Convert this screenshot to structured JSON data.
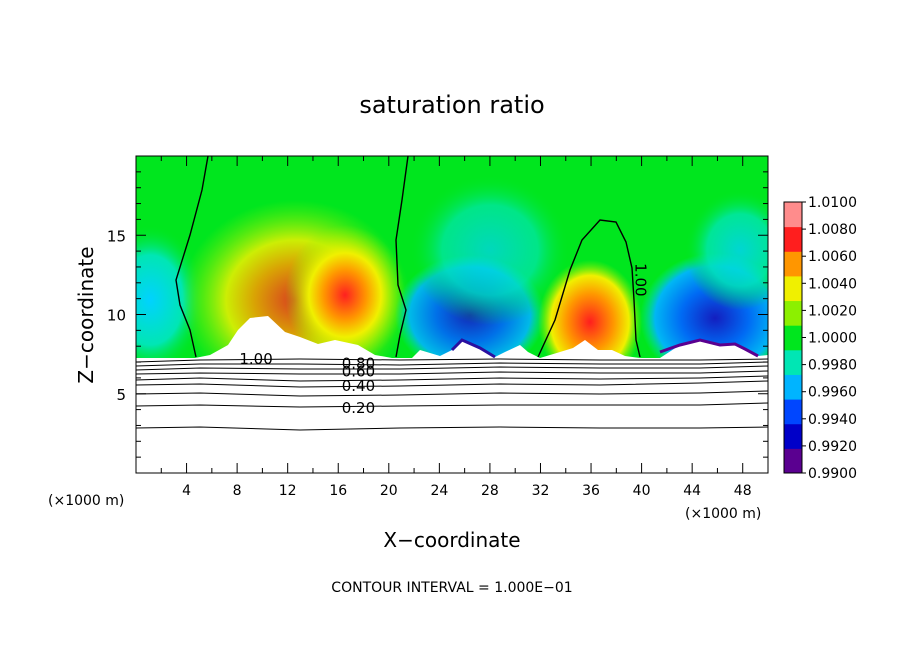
{
  "chart_data": {
    "type": "heatmap",
    "title": "saturation ratio",
    "xlabel": "X−coordinate",
    "ylabel": "Z−coordinate",
    "x_unit_left": "(×1000 m)",
    "x_unit_right": "(×1000 m)",
    "xlim": [
      0,
      50
    ],
    "ylim": [
      0,
      20
    ],
    "x_ticks": [
      4,
      8,
      12,
      16,
      20,
      24,
      28,
      32,
      36,
      40,
      44,
      48
    ],
    "y_ticks": [
      5,
      10,
      15
    ],
    "colorbar": {
      "levels": [
        0.99,
        0.992,
        0.994,
        0.996,
        0.998,
        1.0,
        1.002,
        1.004,
        1.006,
        1.008,
        1.01
      ],
      "labels": [
        "0.9900",
        "0.9920",
        "0.9940",
        "0.9960",
        "0.9980",
        "1.0000",
        "1.0020",
        "1.0040",
        "1.0060",
        "1.0080",
        "1.0100"
      ],
      "colors": [
        "#5a0090",
        "#0000c8",
        "#0046ff",
        "#00b4ff",
        "#00e6b4",
        "#00e61e",
        "#8cf000",
        "#f0f000",
        "#ff9600",
        "#ff1e1e",
        "#ff8c8c"
      ]
    },
    "contour_labels": [
      {
        "text": "1.00",
        "x": 9.5,
        "z": 7.2
      },
      {
        "text": "1.00",
        "x": 39.5,
        "z": 12.5
      },
      {
        "text": "0.80",
        "x": 17.6,
        "z": 6.9
      },
      {
        "text": "0.60",
        "x": 17.6,
        "z": 6.4
      },
      {
        "text": "0.40",
        "x": 17.6,
        "z": 5.5
      },
      {
        "text": "0.20",
        "x": 17.6,
        "z": 4.1
      }
    ],
    "footer": "CONTOUR INTERVAL = 1.000E−01"
  }
}
